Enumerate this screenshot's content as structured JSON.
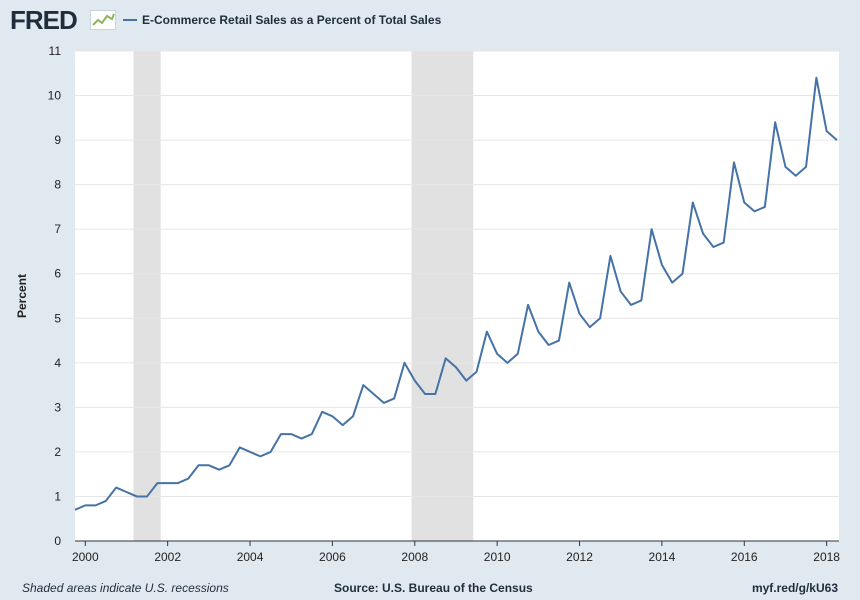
{
  "header": {
    "logo_text": "FRED",
    "legend_label": "E-Commerce Retail Sales as a Percent of Total Sales"
  },
  "colors": {
    "series": "#4572a7",
    "recession": "#e1e1e1",
    "grid": "#e6e6e6",
    "background": "#e1e9f0",
    "plot": "#ffffff",
    "logo_graph": "#8fb35d"
  },
  "footer": {
    "note": "Shaded areas indicate U.S. recessions",
    "source": "Source: U.S. Bureau of the Census",
    "url": "myf.red/g/kU63"
  },
  "chart_data": {
    "type": "line",
    "title": "",
    "xlabel": "",
    "ylabel": "Percent",
    "xlim": [
      1999.75,
      2018.3
    ],
    "ylim": [
      0,
      11
    ],
    "grid": true,
    "legend_position": "top-left",
    "x_ticks": [
      2000,
      2002,
      2004,
      2006,
      2008,
      2010,
      2012,
      2014,
      2016,
      2018
    ],
    "y_ticks": [
      0,
      1,
      2,
      3,
      4,
      5,
      6,
      7,
      8,
      9,
      10,
      11
    ],
    "recessions": [
      {
        "start": 2001.17,
        "end": 2001.83
      },
      {
        "start": 2007.92,
        "end": 2009.42
      }
    ],
    "series": [
      {
        "name": "E-Commerce Retail Sales as a Percent of Total Sales",
        "points": [
          [
            "1999-Q4",
            0.7
          ],
          [
            "2000-Q1",
            0.8
          ],
          [
            "2000-Q2",
            0.8
          ],
          [
            "2000-Q3",
            0.9
          ],
          [
            "2000-Q4",
            1.2
          ],
          [
            "2001-Q1",
            1.1
          ],
          [
            "2001-Q2",
            1.0
          ],
          [
            "2001-Q3",
            1.0
          ],
          [
            "2001-Q4",
            1.3
          ],
          [
            "2002-Q1",
            1.3
          ],
          [
            "2002-Q2",
            1.3
          ],
          [
            "2002-Q3",
            1.4
          ],
          [
            "2002-Q4",
            1.7
          ],
          [
            "2003-Q1",
            1.7
          ],
          [
            "2003-Q2",
            1.6
          ],
          [
            "2003-Q3",
            1.7
          ],
          [
            "2003-Q4",
            2.1
          ],
          [
            "2004-Q1",
            2.0
          ],
          [
            "2004-Q2",
            1.9
          ],
          [
            "2004-Q3",
            2.0
          ],
          [
            "2004-Q4",
            2.4
          ],
          [
            "2005-Q1",
            2.4
          ],
          [
            "2005-Q2",
            2.3
          ],
          [
            "2005-Q3",
            2.4
          ],
          [
            "2005-Q4",
            2.9
          ],
          [
            "2006-Q1",
            2.8
          ],
          [
            "2006-Q2",
            2.6
          ],
          [
            "2006-Q3",
            2.8
          ],
          [
            "2006-Q4",
            3.5
          ],
          [
            "2007-Q1",
            3.3
          ],
          [
            "2007-Q2",
            3.1
          ],
          [
            "2007-Q3",
            3.2
          ],
          [
            "2007-Q4",
            4.0
          ],
          [
            "2008-Q1",
            3.6
          ],
          [
            "2008-Q2",
            3.3
          ],
          [
            "2008-Q3",
            3.3
          ],
          [
            "2008-Q4",
            4.1
          ],
          [
            "2009-Q1",
            3.9
          ],
          [
            "2009-Q2",
            3.6
          ],
          [
            "2009-Q3",
            3.8
          ],
          [
            "2009-Q4",
            4.7
          ],
          [
            "2010-Q1",
            4.2
          ],
          [
            "2010-Q2",
            4.0
          ],
          [
            "2010-Q3",
            4.2
          ],
          [
            "2010-Q4",
            5.3
          ],
          [
            "2011-Q1",
            4.7
          ],
          [
            "2011-Q2",
            4.4
          ],
          [
            "2011-Q3",
            4.5
          ],
          [
            "2011-Q4",
            5.8
          ],
          [
            "2012-Q1",
            5.1
          ],
          [
            "2012-Q2",
            4.8
          ],
          [
            "2012-Q3",
            5.0
          ],
          [
            "2012-Q4",
            6.4
          ],
          [
            "2013-Q1",
            5.6
          ],
          [
            "2013-Q2",
            5.3
          ],
          [
            "2013-Q3",
            5.4
          ],
          [
            "2013-Q4",
            7.0
          ],
          [
            "2014-Q1",
            6.2
          ],
          [
            "2014-Q2",
            5.8
          ],
          [
            "2014-Q3",
            6.0
          ],
          [
            "2014-Q4",
            7.6
          ],
          [
            "2015-Q1",
            6.9
          ],
          [
            "2015-Q2",
            6.6
          ],
          [
            "2015-Q3",
            6.7
          ],
          [
            "2015-Q4",
            8.5
          ],
          [
            "2016-Q1",
            7.6
          ],
          [
            "2016-Q2",
            7.4
          ],
          [
            "2016-Q3",
            7.5
          ],
          [
            "2016-Q4",
            9.4
          ],
          [
            "2017-Q1",
            8.4
          ],
          [
            "2017-Q2",
            8.2
          ],
          [
            "2017-Q3",
            8.4
          ],
          [
            "2017-Q4",
            10.4
          ],
          [
            "2018-Q1",
            9.2
          ],
          [
            "2018-Q2",
            9.0
          ]
        ]
      }
    ]
  }
}
